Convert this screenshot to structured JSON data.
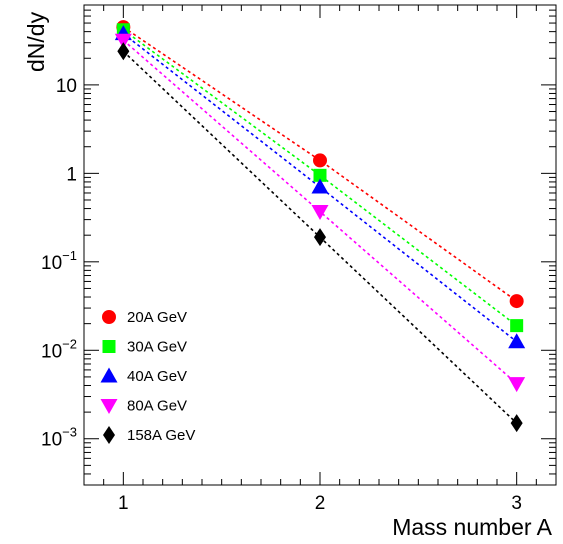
{
  "chart_data": {
    "type": "scatter",
    "title": "",
    "xlabel": "Mass number A",
    "ylabel": "dN/dy",
    "xlim": [
      0.8,
      3.2
    ],
    "ylim": [
      0.0003,
      80
    ],
    "yscale": "log",
    "grid": false,
    "legend_position": "bottom-left",
    "x_ticks": [
      1,
      2,
      3
    ],
    "x_tick_labels": [
      "1",
      "2",
      "3"
    ],
    "y_ticks": [
      {
        "value": 0.001,
        "base": "10",
        "exp": "−3"
      },
      {
        "value": 0.01,
        "base": "10",
        "exp": "−2"
      },
      {
        "value": 0.1,
        "base": "10",
        "exp": "−1"
      },
      {
        "value": 1,
        "base": "1",
        "exp": ""
      },
      {
        "value": 10,
        "base": "10",
        "exp": ""
      }
    ],
    "series": [
      {
        "name": "20A GeV",
        "color": "#ff0000",
        "marker": "circle",
        "x": [
          1,
          2,
          3
        ],
        "values": [
          45,
          1.4,
          0.036
        ]
      },
      {
        "name": "30A GeV",
        "color": "#00ff00",
        "marker": "square",
        "x": [
          1,
          2,
          3
        ],
        "values": [
          42,
          0.95,
          0.019
        ]
      },
      {
        "name": "40A GeV",
        "color": "#0000ff",
        "marker": "triangle-up",
        "x": [
          1,
          2,
          3
        ],
        "values": [
          38,
          0.7,
          0.0125
        ]
      },
      {
        "name": "80A GeV",
        "color": "#ff00ff",
        "marker": "triangle-down",
        "x": [
          1,
          2,
          3
        ],
        "values": [
          32,
          0.37,
          0.0042
        ]
      },
      {
        "name": "158A GeV",
        "color": "#000000",
        "marker": "diamond",
        "x": [
          1,
          2,
          3
        ],
        "values": [
          24,
          0.19,
          0.0015
        ]
      }
    ]
  }
}
